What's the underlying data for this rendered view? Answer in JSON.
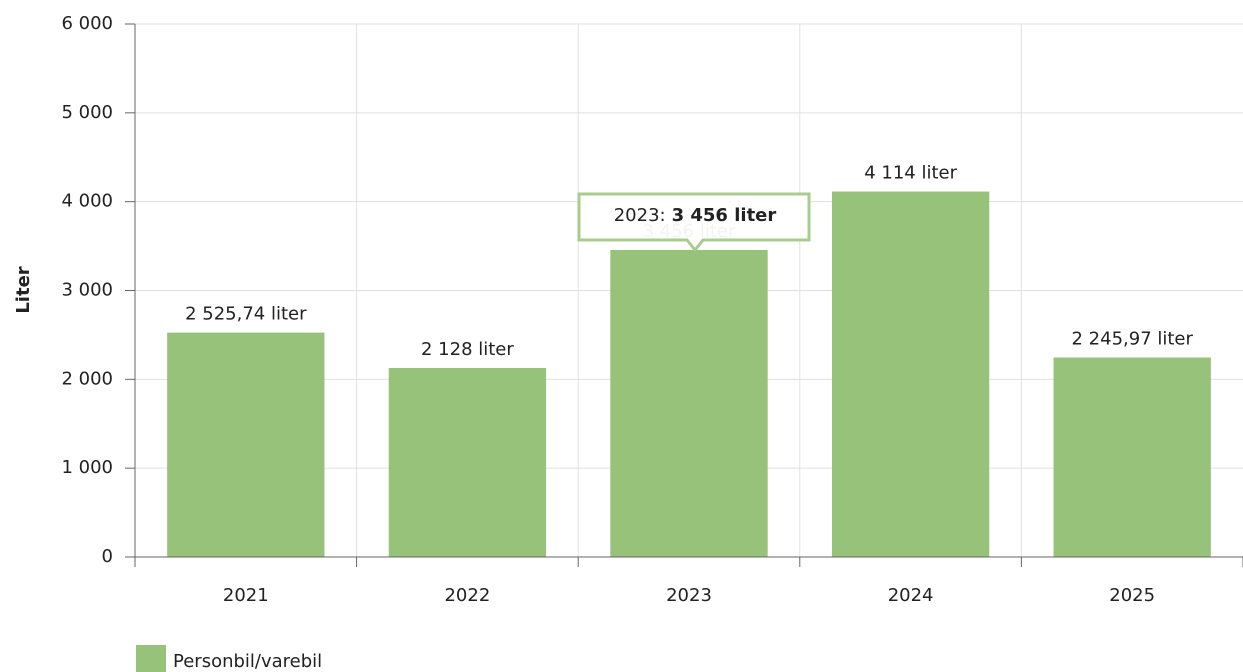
{
  "chart_data": {
    "type": "bar",
    "y_label": "Liter",
    "categories": [
      "2021",
      "2022",
      "2023",
      "2024",
      "2025"
    ],
    "series": [
      {
        "name": "Personbil/varebil",
        "color": "#97c27a",
        "values": [
          2525.74,
          2128,
          3456,
          4114,
          2245.97
        ],
        "value_labels": [
          "2 525,74 liter",
          "2 128 liter",
          "3 456 liter",
          "4 114 liter",
          "2 245,97 liter"
        ]
      }
    ],
    "ylim": [
      0,
      6000
    ],
    "yticks": [
      0,
      {
        "value": 1000,
        "label": "1 000"
      },
      {
        "value": 2000,
        "label": "2 000"
      },
      {
        "value": 3000,
        "label": "3 000"
      },
      {
        "value": 4000,
        "label": "4 000"
      },
      {
        "value": 5000,
        "label": "5 000"
      },
      {
        "value": 6000,
        "label": "6 000"
      }
    ],
    "grid": true,
    "legend": "bottom-left",
    "tooltip": {
      "label": "2023:",
      "value_label": "3 456 liter"
    }
  }
}
